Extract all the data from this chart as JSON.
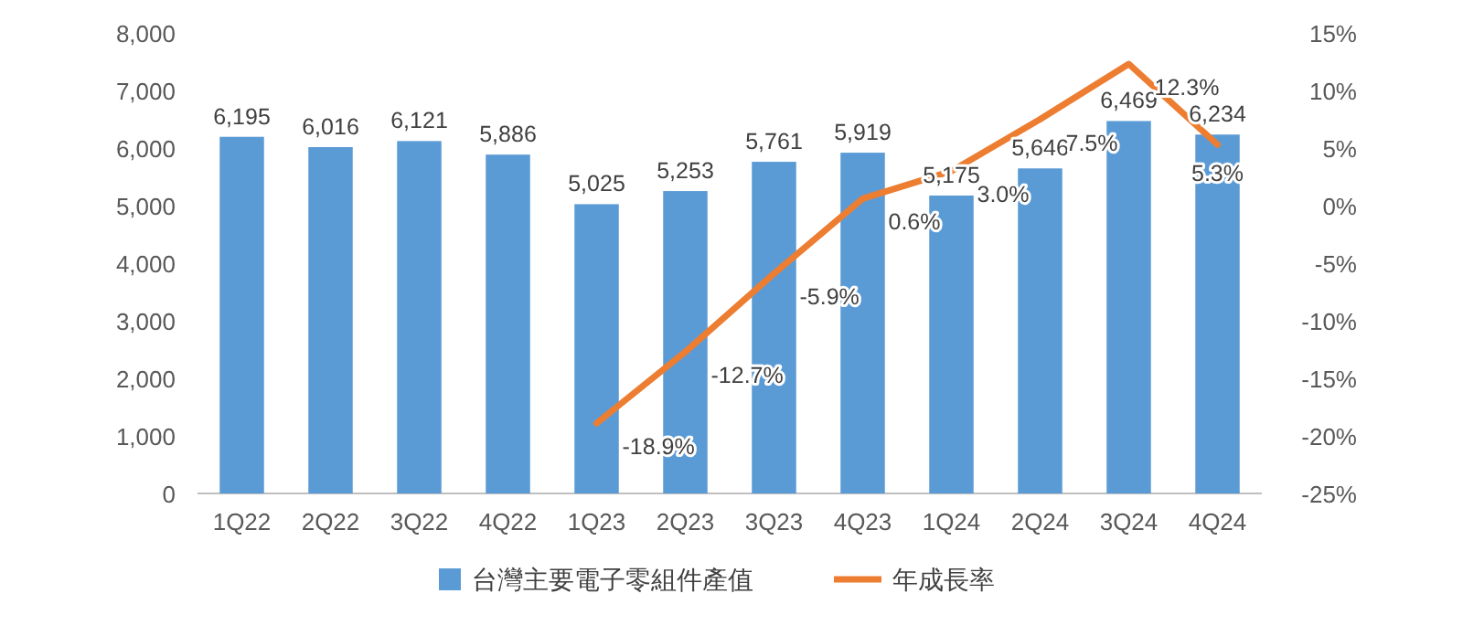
{
  "chart_data": {
    "type": "bar",
    "categories": [
      "1Q22",
      "2Q22",
      "3Q22",
      "4Q22",
      "1Q23",
      "2Q23",
      "3Q23",
      "4Q23",
      "1Q24",
      "2Q24",
      "3Q24",
      "4Q24"
    ],
    "series": [
      {
        "name": "台灣主要電子零組件產值",
        "color": "#5b9bd5",
        "values": [
          6195,
          6016,
          6121,
          5886,
          5025,
          5253,
          5761,
          5919,
          5175,
          5646,
          6469,
          6234
        ],
        "value_labels": [
          "6,195",
          "6,016",
          "6,121",
          "5,886",
          "5,025",
          "5,253",
          "5,761",
          "5,919",
          "5,175",
          "5,646",
          "6,469",
          "6,234"
        ]
      },
      {
        "name": "年成長率",
        "type": "line",
        "axis": "y2",
        "color": "#ed7d31",
        "marker": "none",
        "values": [
          null,
          null,
          null,
          null,
          -18.9,
          -12.7,
          -5.9,
          0.6,
          3.0,
          7.5,
          12.3,
          5.3
        ],
        "value_labels": [
          null,
          null,
          null,
          null,
          "-18.9%",
          "-12.7%",
          "-5.9%",
          "0.6%",
          "3.0%",
          "7.5%",
          "12.3%",
          "5.3%"
        ]
      }
    ],
    "ylim": [
      0,
      8000
    ],
    "yticks": [
      0,
      {
        "value": 1000,
        "label": "1,000"
      },
      {
        "value": 2000,
        "label": "2,000"
      },
      {
        "value": 3000,
        "label": "3,000"
      },
      {
        "value": 4000,
        "label": "4,000"
      },
      {
        "value": 5000,
        "label": "5,000"
      },
      {
        "value": 6000,
        "label": "6,000"
      },
      {
        "value": 7000,
        "label": "7,000"
      },
      {
        "value": 8000,
        "label": "8,000"
      }
    ],
    "y2lim": [
      -25,
      15
    ],
    "y2ticks": [
      {
        "value": -25,
        "label": "-25%"
      },
      {
        "value": -20,
        "label": "-20%"
      },
      {
        "value": -15,
        "label": "-15%"
      },
      {
        "value": -10,
        "label": "-10%"
      },
      {
        "value": -5,
        "label": "-5%"
      },
      {
        "value": 0,
        "label": "0%"
      },
      {
        "value": 5,
        "label": "5%"
      },
      {
        "value": 10,
        "label": "10%"
      },
      {
        "value": 15,
        "label": "15%"
      }
    ],
    "legend": "bottom",
    "grid": false
  }
}
